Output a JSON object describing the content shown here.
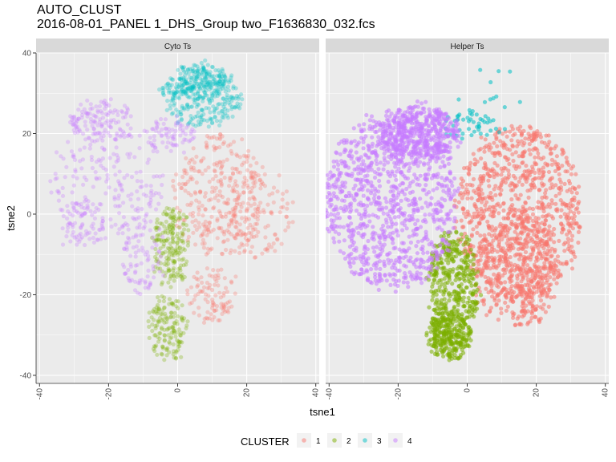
{
  "title": "AUTO_CLUST",
  "subtitle": "2016-08-01_PANEL 1_DHS_Group two_F1636830_032.fcs",
  "chart_data": {
    "type": "scatter",
    "facets": [
      "Cyto Ts",
      "Helper Ts"
    ],
    "xlabel": "tsne1",
    "ylabel": "tsne2",
    "xlim": [
      -41,
      41
    ],
    "ylim": [
      -42,
      40
    ],
    "x_ticks": [
      "-40",
      "-20",
      "0",
      "20",
      "40"
    ],
    "y_ticks": [
      "-40",
      "-20",
      "0",
      "20",
      "40"
    ],
    "grid": true,
    "legend": {
      "title": "CLUSTER",
      "position": "bottom",
      "entries": [
        {
          "label": "1",
          "color": "#F8766D"
        },
        {
          "label": "2",
          "color": "#7CAE00"
        },
        {
          "label": "3",
          "color": "#00BFC4"
        },
        {
          "label": "4",
          "color": "#C77CFF"
        }
      ]
    },
    "point_alpha": {
      "Cyto Ts": 0.3,
      "Helper Ts": 0.55
    },
    "series": {
      "Cyto Ts": [
        {
          "name": "1",
          "color": "#F8766D",
          "n": 520,
          "regions": [
            {
              "c": [
                12,
                5
              ],
              "r": [
                13,
                15
              ],
              "w": 4
            },
            {
              "c": [
                24,
                0
              ],
              "r": [
                9,
                11
              ],
              "w": 1
            },
            {
              "c": [
                10,
                -20
              ],
              "r": [
                8,
                7
              ],
              "w": 1
            }
          ]
        },
        {
          "name": "2",
          "color": "#7CAE00",
          "n": 340,
          "regions": [
            {
              "c": [
                -2,
                -8
              ],
              "r": [
                5,
                10
              ],
              "w": 3
            },
            {
              "c": [
                -3,
                -28
              ],
              "r": [
                5,
                8
              ],
              "w": 2
            }
          ]
        },
        {
          "name": "3",
          "color": "#00BFC4",
          "n": 430,
          "regions": [
            {
              "c": [
                7,
                29
              ],
              "r": [
                12,
                7
              ],
              "w": 4
            },
            {
              "c": [
                6,
                33
              ],
              "r": [
                8,
                4
              ],
              "w": 2
            }
          ]
        },
        {
          "name": "4",
          "color": "#C77CFF",
          "n": 560,
          "regions": [
            {
              "c": [
                -20,
                8
              ],
              "r": [
                17,
                14
              ],
              "w": 3
            },
            {
              "c": [
                -22,
                23
              ],
              "r": [
                9,
                5
              ],
              "w": 2
            },
            {
              "c": [
                -28,
                -3
              ],
              "r": [
                7,
                6
              ],
              "w": 1
            },
            {
              "c": [
                -10,
                -10
              ],
              "r": [
                6,
                10
              ],
              "w": 1
            },
            {
              "c": [
                -3,
                20
              ],
              "r": [
                8,
                4
              ],
              "w": 1
            }
          ]
        }
      ],
      "Helper Ts": [
        {
          "name": "1",
          "color": "#F8766D",
          "n": 1300,
          "regions": [
            {
              "c": [
                15,
                0
              ],
              "r": [
                18,
                22
              ],
              "w": 4
            },
            {
              "c": [
                14,
                -14
              ],
              "r": [
                12,
                14
              ],
              "w": 2
            }
          ]
        },
        {
          "name": "2",
          "color": "#7CAE00",
          "n": 650,
          "regions": [
            {
              "c": [
                -4,
                -18
              ],
              "r": [
                7,
                14
              ],
              "w": 3
            },
            {
              "c": [
                -5,
                -30
              ],
              "r": [
                6,
                6
              ],
              "w": 2
            }
          ]
        },
        {
          "name": "3",
          "color": "#00BFC4",
          "n": 60,
          "regions": [
            {
              "c": [
                0,
                22
              ],
              "r": [
                8,
                4
              ],
              "w": 3
            },
            {
              "c": [
                8,
                28
              ],
              "r": [
                12,
                8
              ],
              "w": 1
            }
          ]
        },
        {
          "name": "4",
          "color": "#C77CFF",
          "n": 1450,
          "regions": [
            {
              "c": [
                -22,
                3
              ],
              "r": [
                19,
                22
              ],
              "w": 4
            },
            {
              "c": [
                -14,
                20
              ],
              "r": [
                12,
                7
              ],
              "w": 2
            }
          ]
        }
      ]
    }
  }
}
